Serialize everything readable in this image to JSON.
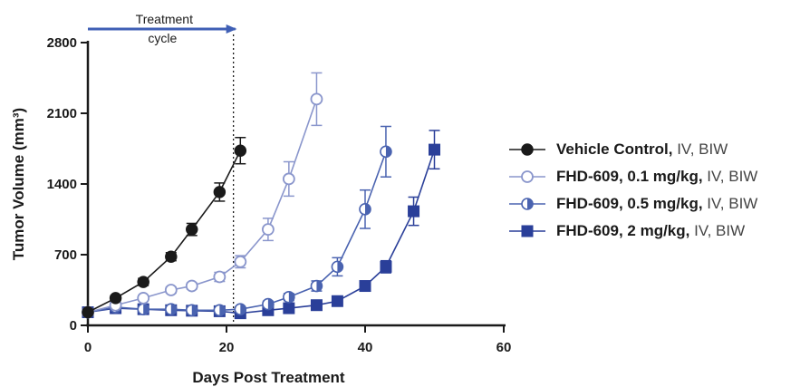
{
  "chart_data": {
    "type": "line",
    "xlabel": "Days Post Treatment",
    "ylabel": "Tumor Volume (mm³)",
    "xlim": [
      0,
      60
    ],
    "ylim": [
      0,
      2800
    ],
    "xticks": [
      0,
      20,
      40,
      60
    ],
    "yticks": [
      0,
      700,
      1400,
      2100,
      2800
    ],
    "annotation": {
      "text_line1": "Treatment",
      "text_line2": "cycle",
      "arrow_from_x": 0,
      "arrow_to_x": 21,
      "dotted_line_x": 21
    },
    "legend_position": "right",
    "series": [
      {
        "name": "Vehicle Control,",
        "name_suffix": " IV, BIW",
        "color": "#1a1a1a",
        "marker": "circle-filled",
        "x": [
          0,
          4,
          8,
          12,
          15,
          19,
          22
        ],
        "y": [
          130,
          270,
          430,
          680,
          950,
          1320,
          1730
        ],
        "err": [
          20,
          25,
          35,
          40,
          60,
          90,
          130
        ]
      },
      {
        "name": "FHD-609, 0.1 mg/kg,",
        "name_suffix": " IV, BIW",
        "color": "#8a96cc",
        "marker": "circle-open",
        "x": [
          0,
          4,
          8,
          12,
          15,
          19,
          22,
          26,
          29,
          33
        ],
        "y": [
          130,
          200,
          270,
          350,
          390,
          480,
          630,
          950,
          1450,
          2240
        ],
        "err": [
          20,
          25,
          25,
          30,
          30,
          45,
          60,
          110,
          170,
          260
        ]
      },
      {
        "name": "FHD-609, 0.5 mg/kg,",
        "name_suffix": " IV, BIW",
        "color": "#4a63b0",
        "marker": "circle-half",
        "x": [
          0,
          4,
          8,
          12,
          15,
          19,
          22,
          26,
          29,
          33,
          36,
          40,
          43
        ],
        "y": [
          130,
          180,
          160,
          160,
          150,
          150,
          160,
          210,
          280,
          390,
          580,
          1150,
          1720
        ],
        "err": [
          20,
          20,
          20,
          20,
          20,
          20,
          25,
          30,
          35,
          50,
          90,
          190,
          250
        ]
      },
      {
        "name": "FHD-609, 2 mg/kg,",
        "name_suffix": " IV, BIW",
        "color": "#2a3f99",
        "marker": "square-filled",
        "x": [
          0,
          4,
          8,
          12,
          15,
          19,
          22,
          26,
          29,
          33,
          36,
          40,
          43,
          47,
          50
        ],
        "y": [
          130,
          170,
          160,
          150,
          145,
          140,
          120,
          150,
          170,
          200,
          240,
          390,
          580,
          1130,
          1740
        ],
        "err": [
          20,
          20,
          20,
          20,
          20,
          20,
          20,
          20,
          20,
          25,
          30,
          40,
          60,
          140,
          190
        ]
      }
    ]
  }
}
